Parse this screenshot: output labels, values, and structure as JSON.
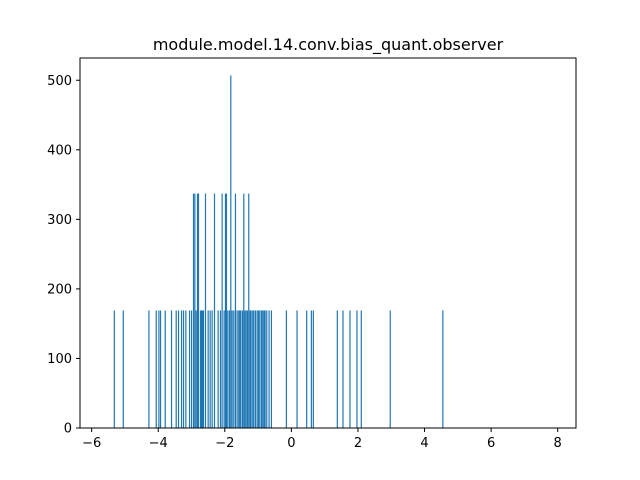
{
  "chart_data": {
    "type": "bar",
    "title": "module.model.14.conv.bias_quant.observer",
    "xlabel": "",
    "ylabel": "",
    "xlim": [
      -6.35,
      8.55
    ],
    "ylim": [
      0,
      532
    ],
    "xticks": [
      -6,
      -4,
      -2,
      0,
      2,
      4,
      6,
      8
    ],
    "xtick_labels": [
      "−6",
      "−4",
      "−2",
      "0",
      "2",
      "4",
      "6",
      "8"
    ],
    "yticks": [
      0,
      100,
      200,
      300,
      400,
      500
    ],
    "ytick_labels": [
      "0",
      "100",
      "200",
      "300",
      "400",
      "500"
    ],
    "bar_color": "#1f77b4",
    "grid": false,
    "x": [
      -5.32,
      -5.05,
      -4.28,
      -4.06,
      -3.98,
      -3.93,
      -3.79,
      -3.6,
      -3.46,
      -3.39,
      -3.3,
      -3.24,
      -3.17,
      -3.06,
      -3.0,
      -2.94,
      -2.9,
      -2.86,
      -2.82,
      -2.79,
      -2.73,
      -2.7,
      -2.67,
      -2.64,
      -2.58,
      -2.5,
      -2.44,
      -2.38,
      -2.31,
      -2.2,
      -2.13,
      -2.08,
      -2.02,
      -1.98,
      -1.95,
      -1.91,
      -1.86,
      -1.82,
      -1.78,
      -1.73,
      -1.68,
      -1.63,
      -1.58,
      -1.55,
      -1.52,
      -1.47,
      -1.43,
      -1.4,
      -1.36,
      -1.32,
      -1.28,
      -1.24,
      -1.21,
      -1.16,
      -1.13,
      -1.08,
      -1.03,
      -0.99,
      -0.95,
      -0.9,
      -0.86,
      -0.82,
      -0.79,
      -0.74,
      -0.67,
      -0.6,
      -0.15,
      0.17,
      0.46,
      0.6,
      0.66,
      1.38,
      1.55,
      1.76,
      1.97,
      2.1,
      2.97,
      4.55
    ],
    "values": [
      169,
      169,
      169,
      169,
      169,
      169,
      169,
      169,
      169,
      169,
      169,
      169,
      169,
      169,
      169,
      337,
      337,
      169,
      337,
      337,
      169,
      169,
      169,
      169,
      337,
      169,
      169,
      169,
      337,
      169,
      169,
      337,
      169,
      337,
      337,
      169,
      169,
      507,
      169,
      169,
      337,
      169,
      169,
      169,
      169,
      169,
      337,
      169,
      169,
      169,
      337,
      169,
      169,
      169,
      169,
      169,
      169,
      169,
      169,
      169,
      169,
      169,
      169,
      169,
      169,
      169,
      169,
      169,
      169,
      169,
      169,
      169,
      169,
      169,
      169,
      169,
      169,
      169
    ]
  }
}
